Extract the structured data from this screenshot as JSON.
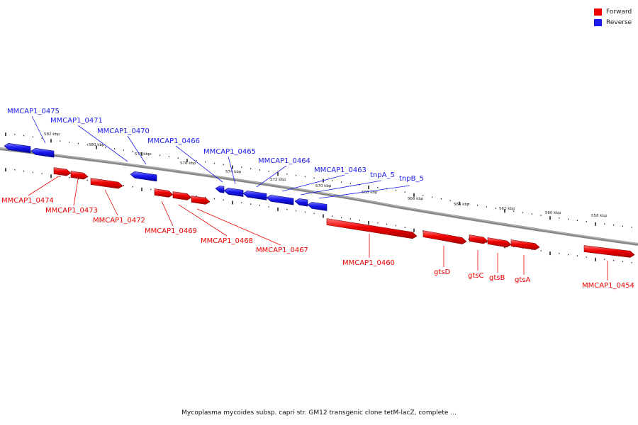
{
  "legend": {
    "forward_label": "Forward",
    "reverse_label": "Reverse",
    "forward_color": "#ee0000",
    "reverse_color": "#1a1aee"
  },
  "caption": "Mycoplasma mycoides subsp. capri str. GM12 transgenic clone tetM-lacZ, complete ...",
  "scale_labels": [
    "582 kbp",
    "580 kbp",
    "578 kbp",
    "576 kbp",
    "574 kbp",
    "572 kbp",
    "570 kbp",
    "568 kbp",
    "566 kbp",
    "564 kbp",
    "562 kbp",
    "560 kbp",
    "558 kbp"
  ],
  "genes": [
    {
      "name": "MMCAP1_0475",
      "strand": "reverse"
    },
    {
      "name": "MMCAP1_0474",
      "strand": "forward"
    },
    {
      "name": "MMCAP1_0473",
      "strand": "forward"
    },
    {
      "name": "MMCAP1_0472",
      "strand": "forward"
    },
    {
      "name": "MMCAP1_0471",
      "strand": "reverse"
    },
    {
      "name": "MMCAP1_0470",
      "strand": "reverse"
    },
    {
      "name": "MMCAP1_0469",
      "strand": "forward"
    },
    {
      "name": "MMCAP1_0468",
      "strand": "forward"
    },
    {
      "name": "MMCAP1_0467",
      "strand": "forward"
    },
    {
      "name": "MMCAP1_0466",
      "strand": "reverse"
    },
    {
      "name": "MMCAP1_0465",
      "strand": "reverse"
    },
    {
      "name": "MMCAP1_0464",
      "strand": "reverse"
    },
    {
      "name": "MMCAP1_0463",
      "strand": "reverse"
    },
    {
      "name": "tnpA_5",
      "strand": "reverse"
    },
    {
      "name": "tnpB_5",
      "strand": "reverse"
    },
    {
      "name": "MMCAP1_0460",
      "strand": "forward"
    },
    {
      "name": "gtsD",
      "strand": "forward"
    },
    {
      "name": "gtsC",
      "strand": "forward"
    },
    {
      "name": "gtsB",
      "strand": "forward"
    },
    {
      "name": "gtsA",
      "strand": "forward"
    },
    {
      "name": "MMCAP1_0454",
      "strand": "forward"
    }
  ]
}
